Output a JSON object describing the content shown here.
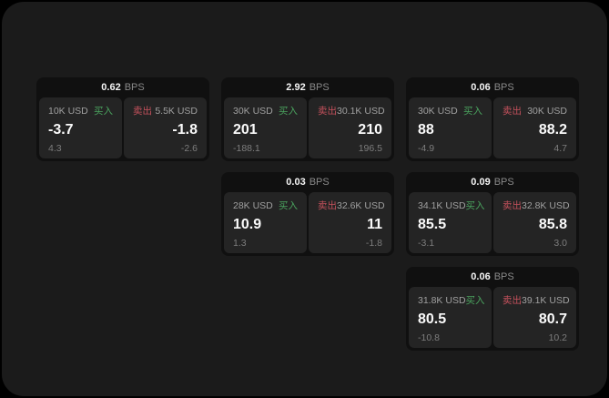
{
  "labels": {
    "bps_unit": "BPS",
    "buy": "买入",
    "sell": "卖出"
  },
  "colors": {
    "buy": "#4aa35e",
    "sell": "#c4515c",
    "page_bg": "#1b1b1b",
    "card_bg": "#101010",
    "panel_bg": "#242424"
  },
  "cards": [
    {
      "bps": "0.62",
      "buy": {
        "amount": "10K USD",
        "value": "-3.7",
        "sub": "4.3"
      },
      "sell": {
        "amount": "5.5K USD",
        "value": "-1.8",
        "sub": "-2.6"
      }
    },
    {
      "bps": "2.92",
      "buy": {
        "amount": "30K USD",
        "value": "201",
        "sub": "-188.1"
      },
      "sell": {
        "amount": "30.1K USD",
        "value": "210",
        "sub": "196.5"
      }
    },
    {
      "bps": "0.06",
      "buy": {
        "amount": "30K USD",
        "value": "88",
        "sub": "-4.9"
      },
      "sell": {
        "amount": "30K USD",
        "value": "88.2",
        "sub": "4.7"
      }
    },
    {
      "bps": "0.03",
      "buy": {
        "amount": "28K USD",
        "value": "10.9",
        "sub": "1.3"
      },
      "sell": {
        "amount": "32.6K USD",
        "value": "11",
        "sub": "-1.8"
      }
    },
    {
      "bps": "0.09",
      "buy": {
        "amount": "34.1K USD",
        "value": "85.5",
        "sub": "-3.1"
      },
      "sell": {
        "amount": "32.8K USD",
        "value": "85.8",
        "sub": "3.0"
      }
    },
    {
      "bps": "0.06",
      "buy": {
        "amount": "31.8K USD",
        "value": "80.5",
        "sub": "-10.8"
      },
      "sell": {
        "amount": "39.1K USD",
        "value": "80.7",
        "sub": "10.2"
      }
    }
  ]
}
